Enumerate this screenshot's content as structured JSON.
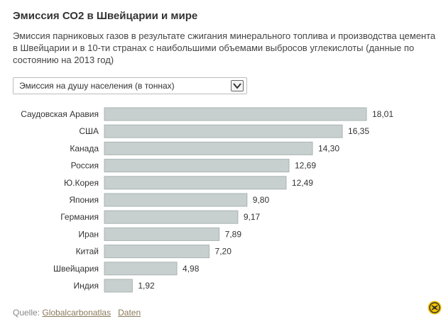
{
  "header": {
    "title": "Эмиссия СО2 в Швейцарии и мире",
    "subtitle": "Эмиссия парниковых газов в результате сжигания минерального топлива и производства цемента в Швейцарии и в 10-ти странах с наибольшими объемами выбросов углекислоты (данные по состоянию на 2013 год)"
  },
  "selector": {
    "selected": "Эмиссия на душу населения (в тоннах)",
    "icon": "chevron-down-icon"
  },
  "chart_data": {
    "type": "bar",
    "orientation": "horizontal",
    "categories": [
      "Саудовская Аравия",
      "США",
      "Канада",
      "Россия",
      "Ю.Корея",
      "Япония",
      "Германия",
      "Иран",
      "Китай",
      "Швейцария",
      "Индия"
    ],
    "values": [
      18.01,
      16.35,
      14.3,
      12.69,
      12.49,
      9.8,
      9.17,
      7.89,
      7.2,
      4.98,
      1.92
    ],
    "value_labels": [
      "18,01",
      "16,35",
      "14,30",
      "12,69",
      "12,49",
      "9,80",
      "9,17",
      "7,89",
      "7,20",
      "4,98",
      "1,92"
    ],
    "xlim": [
      0,
      18.01
    ],
    "grid": false,
    "legend": "none",
    "bar_color": "#c7cfcf",
    "bar_border_color": "#aab3b3"
  },
  "footer": {
    "source_label": "Quelle:",
    "source_link": "Globalcarbonatlas",
    "data_link": "Daten",
    "logo_icon": "swissinfo-logo-icon"
  }
}
